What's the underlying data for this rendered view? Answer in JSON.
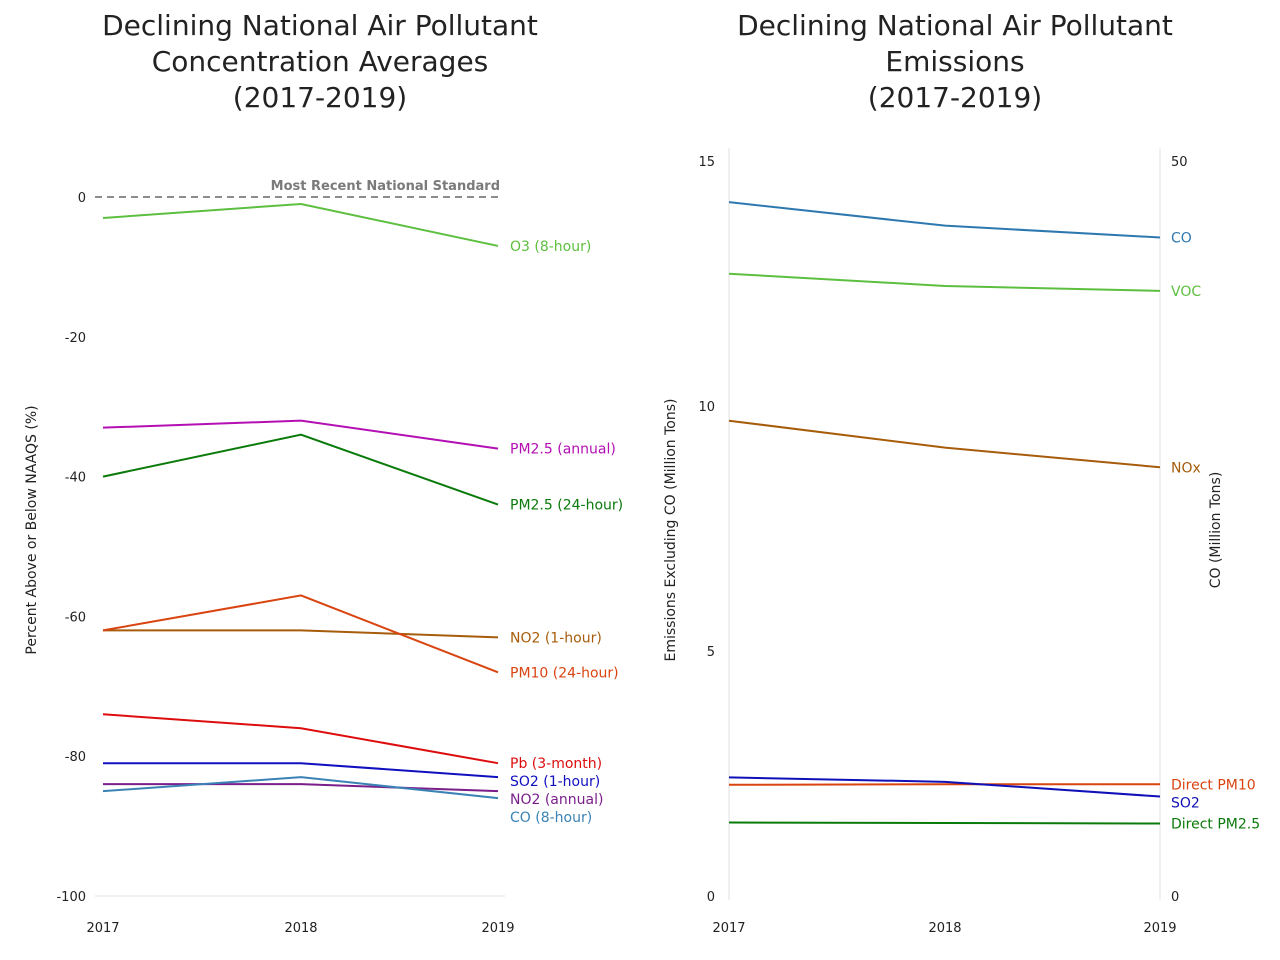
{
  "chart_data": [
    {
      "type": "line",
      "title_lines": [
        "Declining National Air Pollutant",
        "Concentration Averages",
        "(2017-2019)"
      ],
      "ylabel": "Percent Above or Below NAAQS (%)",
      "xlabel": "",
      "x": [
        "2017",
        "2018",
        "2019"
      ],
      "ylim": [
        -100,
        0
      ],
      "yticks": [
        "0",
        "-20",
        "-40",
        "-60",
        "-80",
        "-100"
      ],
      "reference_line": {
        "value": 0,
        "label": "Most Recent National Standard",
        "color": "#8c8c8c"
      },
      "series": [
        {
          "name": "O3 (8-hour)",
          "values": [
            -3,
            -1,
            -7
          ],
          "color": "#5cbf3f"
        },
        {
          "name": "PM2.5 (annual)",
          "values": [
            -33,
            -32,
            -36
          ],
          "color": "#b30fb3"
        },
        {
          "name": "PM2.5 (24-hour)",
          "values": [
            -40,
            -34,
            -44
          ],
          "color": "#0a7a0a"
        },
        {
          "name": "NO2 (1-hour)",
          "values": [
            -62,
            -62,
            -63
          ],
          "color": "#a65c0a"
        },
        {
          "name": "PM10 (24-hour)",
          "values": [
            -62,
            -57,
            -68
          ],
          "color": "#d94410"
        },
        {
          "name": "Pb (3-month)",
          "values": [
            -74,
            -76,
            -81
          ],
          "color": "#dd0d0d"
        },
        {
          "name": "SO2 (1-hour)",
          "values": [
            -81,
            -81,
            -83
          ],
          "color": "#1010c0"
        },
        {
          "name": "NO2 (annual)",
          "values": [
            -84,
            -84,
            -85
          ],
          "color": "#7a1f8a"
        },
        {
          "name": "CO (8-hour)",
          "values": [
            -85,
            -83,
            -86
          ],
          "color": "#3a82b5"
        }
      ]
    },
    {
      "type": "line",
      "title_lines": [
        "Declining National Air Pollutant",
        "Emissions",
        "(2017-2019)"
      ],
      "ylabel": "Emissions Excluding CO (Million Tons)",
      "y2label": "CO (Million Tons)",
      "xlabel": "",
      "x": [
        "2017",
        "2018",
        "2019"
      ],
      "ylim": [
        0,
        15
      ],
      "yticks": [
        "15",
        "10",
        "5",
        "0"
      ],
      "y2lim": [
        0,
        50
      ],
      "y2ticks": [
        "50",
        "0"
      ],
      "series": [
        {
          "name": "CO",
          "axis": "right",
          "values": [
            47.2,
            45.6,
            44.8
          ],
          "color": "#2e78b0"
        },
        {
          "name": "VOC",
          "values": [
            12.7,
            12.45,
            12.35
          ],
          "color": "#5cbf3f"
        },
        {
          "name": "NOx",
          "values": [
            9.7,
            9.15,
            8.75
          ],
          "color": "#a65c0a"
        },
        {
          "name": "Direct PM10",
          "values": [
            2.27,
            2.28,
            2.28
          ],
          "color": "#d94410"
        },
        {
          "name": "SO2",
          "values": [
            2.42,
            2.33,
            2.03
          ],
          "color": "#1010b8"
        },
        {
          "name": "Direct PM2.5",
          "values": [
            1.5,
            1.49,
            1.48
          ],
          "color": "#0a7a0a"
        }
      ]
    }
  ]
}
